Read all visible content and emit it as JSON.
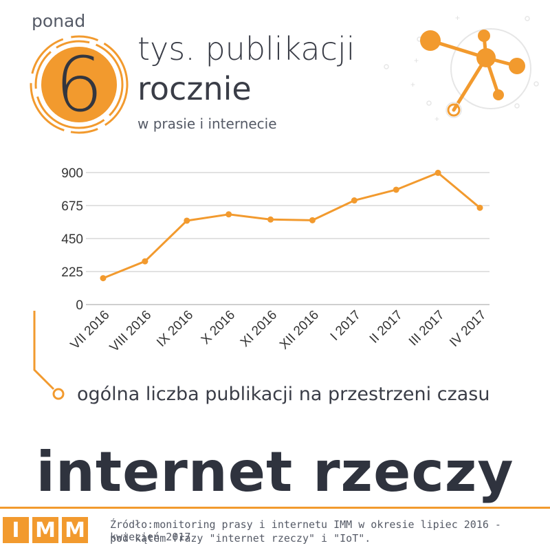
{
  "header": {
    "prefix": "ponad",
    "big_number": "6",
    "headline_line1": "tys. publikacji",
    "headline_line2": "rocznie",
    "subline": "w prasie i internecie"
  },
  "legend": {
    "label": "ogólna liczba publikacji na przestrzeni czasu"
  },
  "main_title": "internet rzeczy",
  "footer": {
    "logo_letters": [
      "I",
      "M",
      "M"
    ],
    "source_line1": "Źródło:monitoring prasy i internetu IMM w okresie lipiec 2016 - kwiecień 2017",
    "source_line2": "pod kątem frazy \"internet rzeczy\" i \"IoT\"."
  },
  "colors": {
    "accent": "#f29a2e",
    "text_dark": "#2f333e",
    "grid": "#d9d9d9"
  },
  "icons": [
    "network-graph-icon",
    "legend-connector-icon"
  ],
  "chart_data": {
    "type": "line",
    "categories": [
      "VII 2016",
      "VIII 2016",
      "IX 2016",
      "X 2016",
      "XI 2016",
      "XII 2016",
      "I 2017",
      "II 2017",
      "III 2017",
      "IV 2017"
    ],
    "values": [
      180,
      295,
      572,
      615,
      580,
      575,
      710,
      783,
      898,
      660
    ],
    "yticks": [
      0,
      225,
      450,
      675,
      900
    ],
    "ylim": [
      0,
      900
    ],
    "grid": true,
    "title": "",
    "xlabel": "",
    "ylabel": ""
  }
}
